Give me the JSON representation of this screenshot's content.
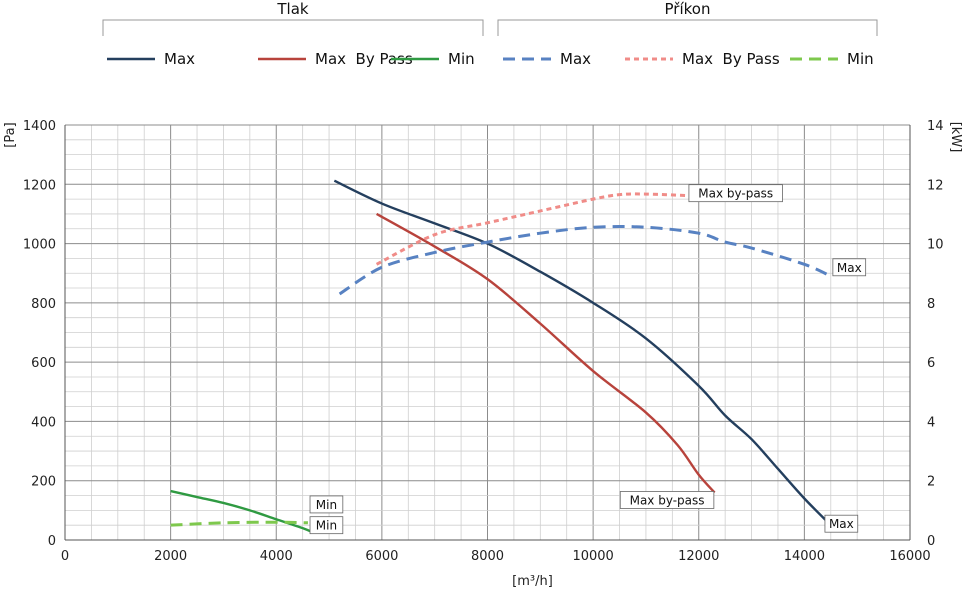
{
  "chart_data": {
    "type": "line",
    "legend": {
      "groups": [
        {
          "label": "Tlak",
          "entries": [
            "Max",
            "Max  By Pass",
            "Min"
          ]
        },
        {
          "label": "Příkon",
          "entries": [
            "Max",
            "Max  By Pass",
            "Min"
          ]
        }
      ]
    },
    "xaxis": {
      "label": "[m³/h]",
      "range": [
        0,
        16000
      ],
      "ticks": [
        "0",
        "2000",
        "4000",
        "6000",
        "8000",
        "10000",
        "12000",
        "14000",
        "16000"
      ]
    },
    "yaxis_left": {
      "label": "[Pa]",
      "range": [
        0,
        1400
      ],
      "ticks": [
        "0",
        "200",
        "400",
        "600",
        "800",
        "1000",
        "1200",
        "1400"
      ]
    },
    "yaxis_right": {
      "label": "[kW]",
      "range": [
        0,
        14
      ],
      "ticks": [
        "0",
        "2",
        "4",
        "6",
        "8",
        "10",
        "12",
        "14"
      ]
    },
    "grid": true,
    "colors": {
      "max": "#243f5e",
      "bypass": "#b8433c",
      "min": "#2f9a42",
      "max_power": "#5882c2",
      "bypass_power": "#f08c88",
      "min_power": "#7ec84d"
    },
    "series": [
      {
        "name": "Max",
        "group": "Tlak",
        "axis": "left",
        "style": "solid",
        "color": "#243f5e",
        "points": [
          [
            5100,
            1212
          ],
          [
            6000,
            1135
          ],
          [
            7000,
            1068
          ],
          [
            8000,
            1000
          ],
          [
            9000,
            905
          ],
          [
            10000,
            800
          ],
          [
            11000,
            680
          ],
          [
            12000,
            520
          ],
          [
            12500,
            420
          ],
          [
            13000,
            340
          ],
          [
            13500,
            240
          ],
          [
            14000,
            140
          ],
          [
            14500,
            50
          ]
        ]
      },
      {
        "name": "Max  By Pass",
        "group": "Tlak",
        "axis": "left",
        "style": "solid",
        "color": "#b8433c",
        "points": [
          [
            5900,
            1100
          ],
          [
            7000,
            990
          ],
          [
            8000,
            880
          ],
          [
            9000,
            730
          ],
          [
            10000,
            570
          ],
          [
            11000,
            430
          ],
          [
            11600,
            320
          ],
          [
            12000,
            220
          ],
          [
            12300,
            160
          ]
        ]
      },
      {
        "name": "Min",
        "group": "Tlak",
        "axis": "left",
        "style": "solid",
        "color": "#2f9a42",
        "points": [
          [
            2000,
            165
          ],
          [
            2500,
            145
          ],
          [
            3000,
            125
          ],
          [
            3500,
            100
          ],
          [
            4000,
            70
          ],
          [
            4500,
            40
          ],
          [
            4700,
            25
          ]
        ]
      },
      {
        "name": "Max",
        "group": "Příkon",
        "axis": "right",
        "style": "dashed",
        "color": "#5882c2",
        "points": [
          [
            5200,
            8.3
          ],
          [
            6000,
            9.2
          ],
          [
            7000,
            9.7
          ],
          [
            8000,
            10.05
          ],
          [
            9000,
            10.35
          ],
          [
            10000,
            10.55
          ],
          [
            11000,
            10.55
          ],
          [
            12000,
            10.35
          ],
          [
            12500,
            10.05
          ],
          [
            13000,
            9.85
          ],
          [
            14000,
            9.3
          ],
          [
            14500,
            8.9
          ]
        ]
      },
      {
        "name": "Max  By Pass",
        "group": "Příkon",
        "axis": "right",
        "style": "dotted",
        "color": "#f08c88",
        "points": [
          [
            5900,
            9.3
          ],
          [
            7000,
            10.3
          ],
          [
            8000,
            10.7
          ],
          [
            9000,
            11.1
          ],
          [
            10000,
            11.5
          ],
          [
            10500,
            11.65
          ],
          [
            11000,
            11.67
          ],
          [
            12000,
            11.6
          ],
          [
            12300,
            11.55
          ]
        ]
      },
      {
        "name": "Min",
        "group": "Příkon",
        "axis": "right",
        "style": "dashed",
        "color": "#7ec84d",
        "points": [
          [
            2000,
            0.5
          ],
          [
            3000,
            0.58
          ],
          [
            4000,
            0.6
          ],
          [
            4600,
            0.58
          ]
        ]
      }
    ],
    "annotations": [
      {
        "text": "Max by-pass",
        "x": 12700,
        "y_right": 11.7
      },
      {
        "text": "Max",
        "x": 14850,
        "y_right": 9.2
      },
      {
        "text": "Max by-pass",
        "x": 11400,
        "y_left": 135
      },
      {
        "text": "Max",
        "x": 14700,
        "y_left": 55
      },
      {
        "text": "Min",
        "x": 4950,
        "y_left": 120
      },
      {
        "text": "Min",
        "x": 4950,
        "y_left": 50
      }
    ]
  }
}
